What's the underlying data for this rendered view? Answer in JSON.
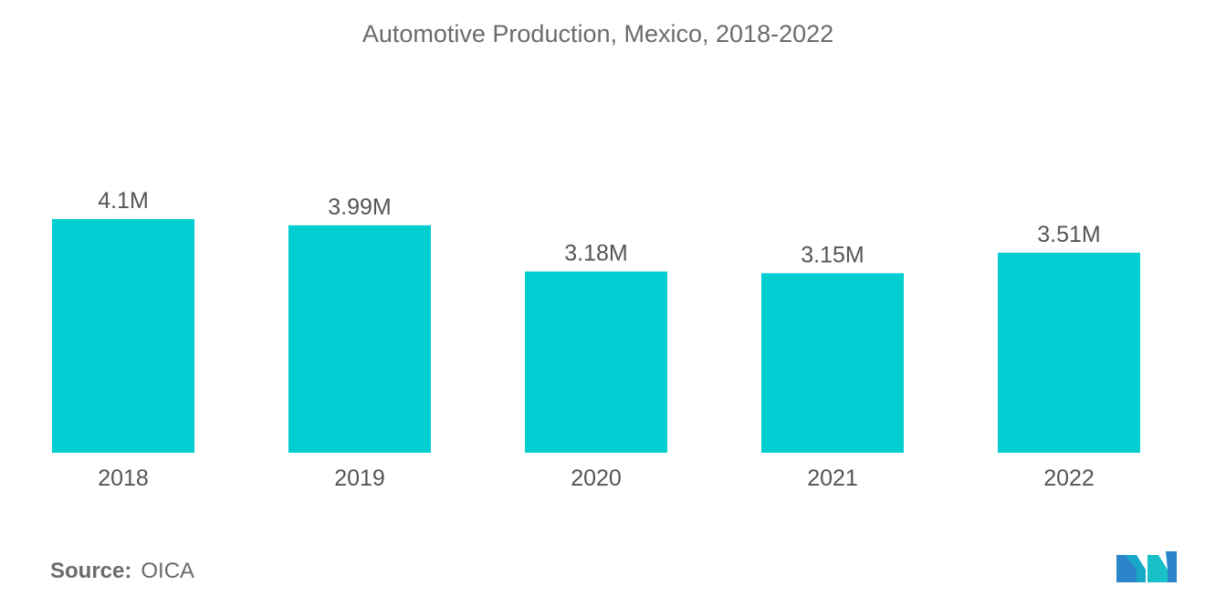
{
  "title": "Automotive Production, Mexico, 2018-2022",
  "source": {
    "label": "Source:",
    "value": "OICA"
  },
  "logo": "mordor-intelligence-logo",
  "colors": {
    "bar": "#00CED1",
    "text": "#555555",
    "axis_text": "#555555"
  },
  "chart_data": {
    "type": "bar",
    "title": "Automotive Production, Mexico, 2018-2022",
    "categories": [
      "2018",
      "2019",
      "2020",
      "2021",
      "2022"
    ],
    "values": [
      4.1,
      3.99,
      3.18,
      3.15,
      3.51
    ],
    "labels": [
      "4.1M",
      "3.99M",
      "3.18M",
      "3.15M",
      "3.51M"
    ],
    "unit": "M",
    "ylim": [
      0,
      4.1
    ],
    "grid": false,
    "legend": "none"
  }
}
